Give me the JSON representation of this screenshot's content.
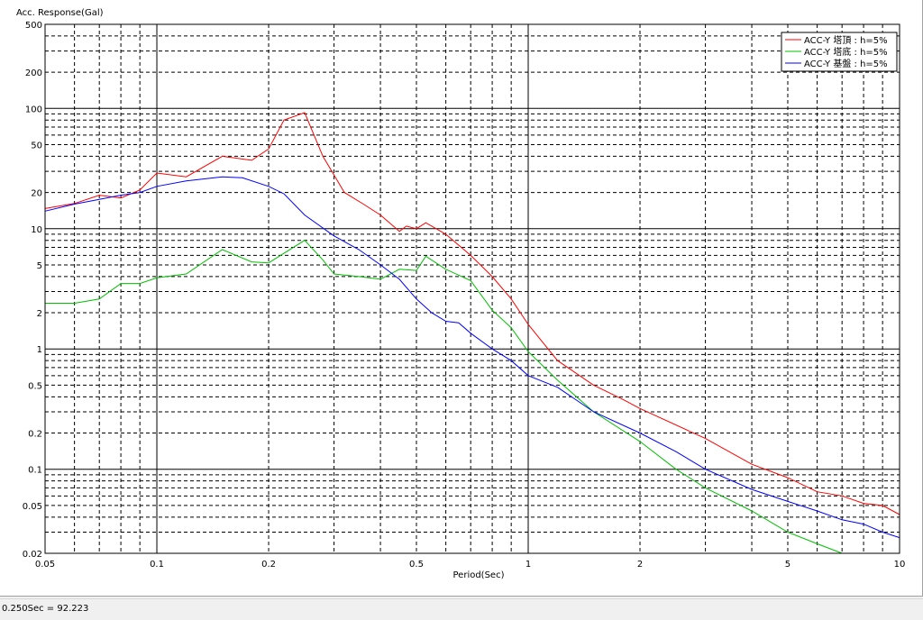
{
  "status_bar": {
    "readout": "0.250Sec = 92.223"
  },
  "chart_data": {
    "type": "line",
    "title": "",
    "ylabel": "Acc. Response(Gal)",
    "xlabel": "Period(Sec)",
    "x_scale": "log",
    "y_scale": "log",
    "xlim": [
      0.05,
      10
    ],
    "ylim": [
      0.02,
      500
    ],
    "x_ticks": [
      0.05,
      0.1,
      0.2,
      0.5,
      1,
      2,
      5,
      10
    ],
    "x_tick_labels": [
      "0.05",
      "0.1",
      "0.2",
      "0.5",
      "1",
      "2",
      "5",
      "10"
    ],
    "y_ticks": [
      0.02,
      0.05,
      0.1,
      0.2,
      0.5,
      1,
      2,
      5,
      10,
      20,
      50,
      100,
      200,
      500
    ],
    "y_tick_labels": [
      "0.02",
      "0.05",
      "0.1",
      "0.2",
      "0.5",
      "1",
      "2",
      "5",
      "10",
      "20",
      "50",
      "100",
      "200",
      "500"
    ],
    "grid": "on",
    "legend_position": "top-right",
    "series": [
      {
        "name": "ACC-Y 塔頂 : h=5%",
        "color": "#ff0000",
        "points": [
          [
            0.05,
            14.7
          ],
          [
            0.06,
            16.2
          ],
          [
            0.07,
            19.0
          ],
          [
            0.08,
            18.0
          ],
          [
            0.09,
            21.0
          ],
          [
            0.1,
            29.0
          ],
          [
            0.12,
            27.0
          ],
          [
            0.15,
            40.0
          ],
          [
            0.18,
            37.0
          ],
          [
            0.2,
            46.0
          ],
          [
            0.22,
            80.0
          ],
          [
            0.25,
            92.2
          ],
          [
            0.28,
            40.0
          ],
          [
            0.32,
            20.0
          ],
          [
            0.36,
            16.0
          ],
          [
            0.4,
            13.0
          ],
          [
            0.45,
            9.5
          ],
          [
            0.47,
            10.5
          ],
          [
            0.5,
            10.0
          ],
          [
            0.53,
            11.2
          ],
          [
            0.6,
            9.0
          ],
          [
            0.7,
            6.0
          ],
          [
            0.8,
            4.0
          ],
          [
            0.9,
            2.6
          ],
          [
            1.0,
            1.6
          ],
          [
            1.2,
            0.8
          ],
          [
            1.5,
            0.5
          ],
          [
            1.8,
            0.38
          ],
          [
            2.0,
            0.32
          ],
          [
            3.0,
            0.18
          ],
          [
            4.0,
            0.11
          ],
          [
            5.0,
            0.085
          ],
          [
            6.0,
            0.065
          ],
          [
            7.0,
            0.06
          ],
          [
            8.0,
            0.052
          ],
          [
            9.0,
            0.05
          ],
          [
            10.0,
            0.042
          ]
        ]
      },
      {
        "name": "ACC-Y 塔底 : h=5%",
        "color": "#00c000",
        "points": [
          [
            0.05,
            2.4
          ],
          [
            0.06,
            2.4
          ],
          [
            0.07,
            2.6
          ],
          [
            0.08,
            3.5
          ],
          [
            0.09,
            3.5
          ],
          [
            0.1,
            3.9
          ],
          [
            0.12,
            4.2
          ],
          [
            0.15,
            6.7
          ],
          [
            0.18,
            5.3
          ],
          [
            0.2,
            5.2
          ],
          [
            0.25,
            8.0
          ],
          [
            0.28,
            5.5
          ],
          [
            0.3,
            4.2
          ],
          [
            0.35,
            4.0
          ],
          [
            0.4,
            3.8
          ],
          [
            0.45,
            4.6
          ],
          [
            0.5,
            4.5
          ],
          [
            0.53,
            5.9
          ],
          [
            0.6,
            4.6
          ],
          [
            0.7,
            3.7
          ],
          [
            0.8,
            2.1
          ],
          [
            0.9,
            1.5
          ],
          [
            1.0,
            0.95
          ],
          [
            1.2,
            0.55
          ],
          [
            1.5,
            0.3
          ],
          [
            2.0,
            0.17
          ],
          [
            2.5,
            0.1
          ],
          [
            3.0,
            0.07
          ],
          [
            4.0,
            0.045
          ],
          [
            5.0,
            0.03
          ],
          [
            6.0,
            0.024
          ],
          [
            7.0,
            0.02
          ]
        ]
      },
      {
        "name": "ACC-Y 基盤 : h=5%",
        "color": "#0000ff",
        "points": [
          [
            0.05,
            14.0
          ],
          [
            0.06,
            16.0
          ],
          [
            0.07,
            17.5
          ],
          [
            0.08,
            19.0
          ],
          [
            0.09,
            20.0
          ],
          [
            0.1,
            22.5
          ],
          [
            0.12,
            25.0
          ],
          [
            0.15,
            27.0
          ],
          [
            0.17,
            26.5
          ],
          [
            0.2,
            22.5
          ],
          [
            0.22,
            19.5
          ],
          [
            0.25,
            13.0
          ],
          [
            0.3,
            8.7
          ],
          [
            0.35,
            6.7
          ],
          [
            0.4,
            5.0
          ],
          [
            0.45,
            3.8
          ],
          [
            0.5,
            2.6
          ],
          [
            0.55,
            2.0
          ],
          [
            0.6,
            1.7
          ],
          [
            0.65,
            1.65
          ],
          [
            0.7,
            1.35
          ],
          [
            0.8,
            1.0
          ],
          [
            0.9,
            0.8
          ],
          [
            1.0,
            0.6
          ],
          [
            1.2,
            0.48
          ],
          [
            1.5,
            0.3
          ],
          [
            2.0,
            0.2
          ],
          [
            2.5,
            0.14
          ],
          [
            3.0,
            0.1
          ],
          [
            4.0,
            0.068
          ],
          [
            5.0,
            0.054
          ],
          [
            6.0,
            0.045
          ],
          [
            7.0,
            0.038
          ],
          [
            8.0,
            0.035
          ],
          [
            9.0,
            0.03
          ],
          [
            10.0,
            0.027
          ]
        ]
      }
    ]
  }
}
